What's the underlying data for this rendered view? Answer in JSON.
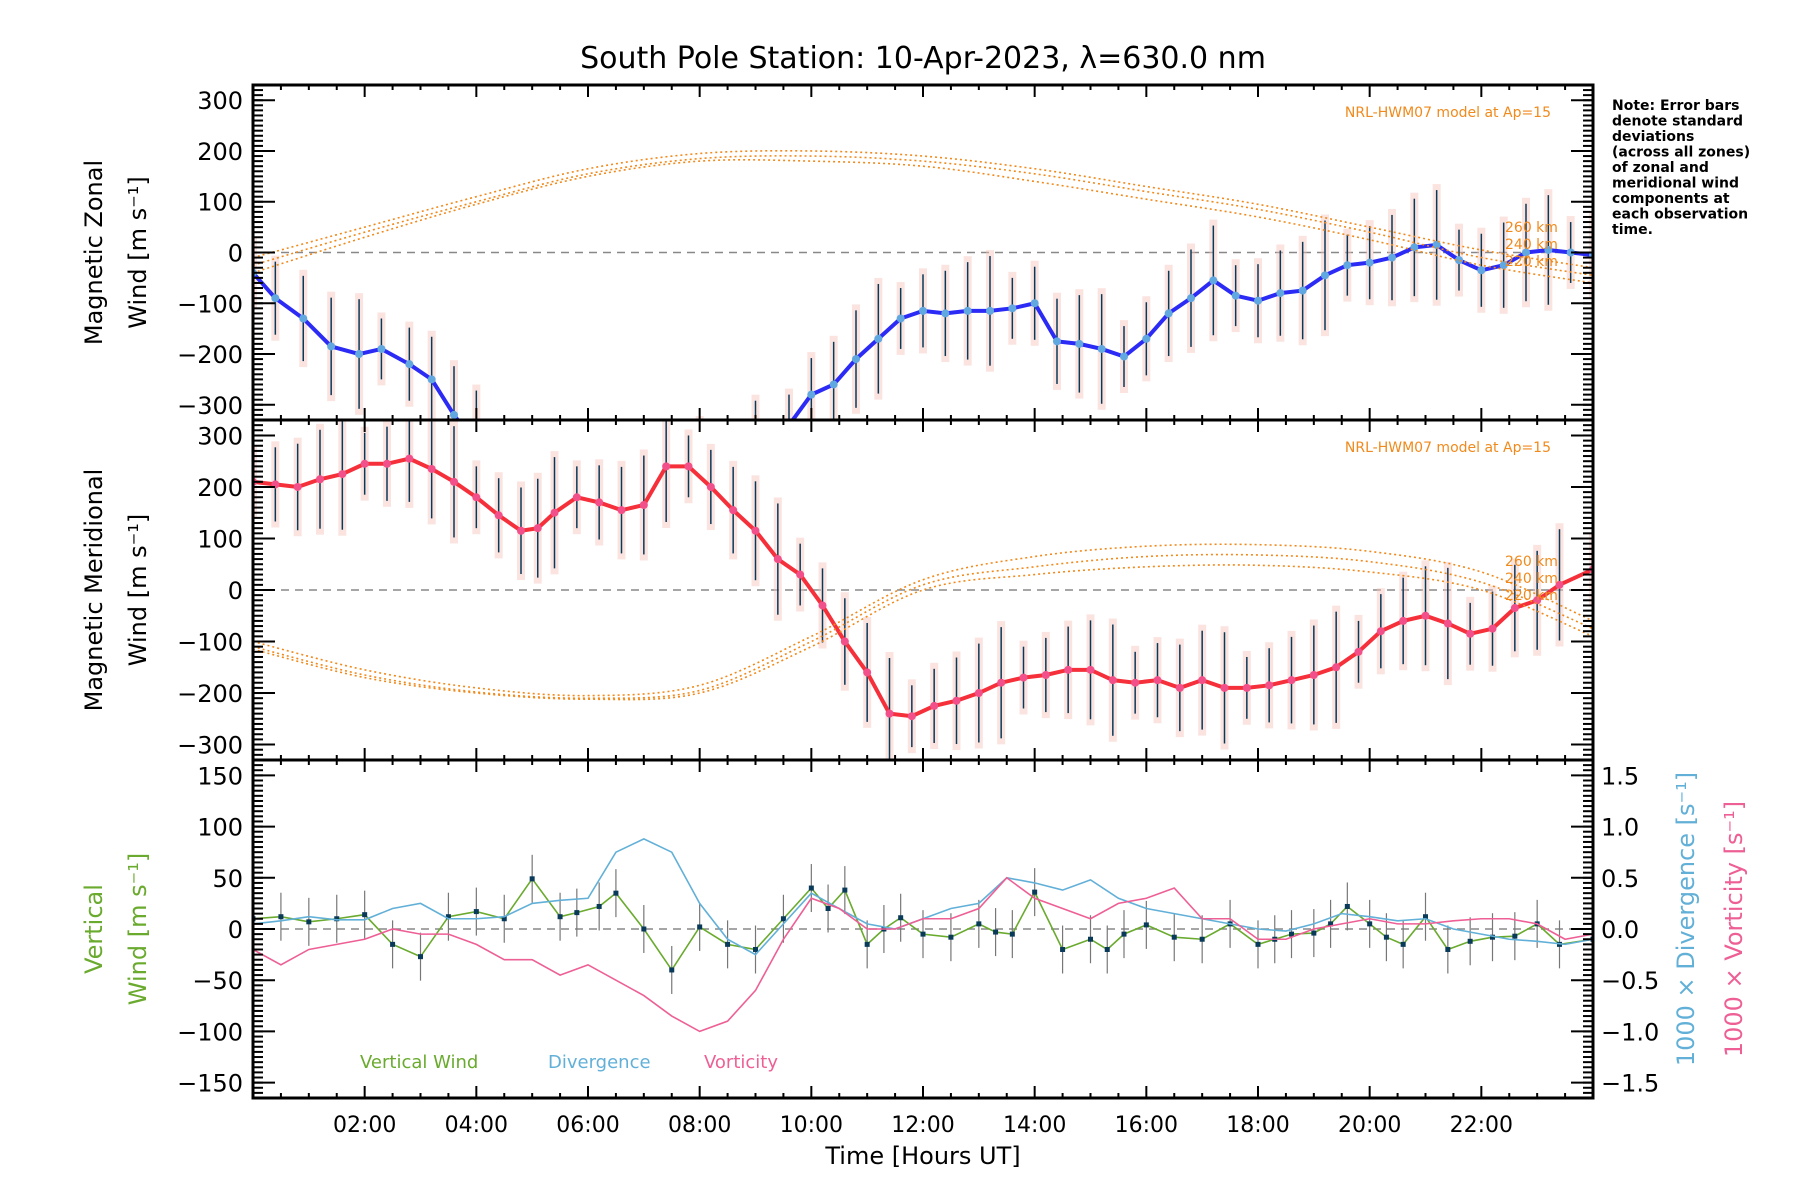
{
  "chart_data": [
    {
      "type": "line",
      "panel": "zonal",
      "title": "South Pole Station: 10-Apr-2023, λ=630.0 nm",
      "ylabel_line1": "Magnetic Zonal",
      "ylabel_line2": "Wind [m s⁻¹]",
      "ylim": [
        -330,
        330
      ],
      "yticks": [
        300,
        200,
        100,
        0,
        -100,
        -200,
        -300
      ],
      "model_label": "NRL-HWM07 model at Ap=15",
      "altitude_labels": [
        "260 km",
        "240 km",
        "220 km"
      ],
      "series": [
        {
          "name": "Zonal wind",
          "color": "#2b2bf5",
          "x": [
            0.0,
            0.4,
            0.9,
            1.4,
            1.9,
            2.3,
            2.8,
            3.2,
            3.6,
            4.0,
            5.0,
            6.0,
            7.0,
            8.0,
            9.0,
            9.6,
            10.0,
            10.4,
            10.8,
            11.2,
            11.6,
            12.0,
            12.4,
            12.8,
            13.2,
            13.6,
            14.0,
            14.4,
            14.8,
            15.2,
            15.6,
            16.0,
            16.4,
            16.8,
            17.2,
            17.6,
            18.0,
            18.4,
            18.8,
            19.2,
            19.6,
            20.0,
            20.4,
            20.8,
            21.2,
            21.6,
            22.0,
            22.4,
            22.8,
            23.2,
            23.6,
            24.0
          ],
          "y": [
            -40,
            -90,
            -130,
            -185,
            -200,
            -190,
            -220,
            -250,
            -320,
            -380,
            -420,
            -430,
            -440,
            -430,
            -400,
            -340,
            -280,
            -260,
            -210,
            -170,
            -130,
            -115,
            -120,
            -115,
            -115,
            -110,
            -100,
            -175,
            -180,
            -190,
            -205,
            -170,
            -120,
            -90,
            -55,
            -85,
            -95,
            -80,
            -75,
            -45,
            -25,
            -20,
            -10,
            10,
            15,
            -15,
            -35,
            -25,
            0,
            5,
            0,
            -5
          ]
        },
        {
          "name": "NRL-HWM07 260 km",
          "color": "#f08a1c",
          "x": [
            0,
            2,
            4,
            6,
            8,
            10,
            12,
            14,
            16,
            18,
            20,
            22,
            24
          ],
          "y": [
            -10,
            50,
            110,
            165,
            195,
            200,
            190,
            165,
            130,
            95,
            50,
            5,
            -30
          ]
        },
        {
          "name": "NRL-HWM07 240 km",
          "color": "#f08a1c",
          "x": [
            0,
            2,
            4,
            6,
            8,
            10,
            12,
            14,
            16,
            18,
            20,
            22,
            24
          ],
          "y": [
            -25,
            40,
            100,
            155,
            185,
            190,
            180,
            155,
            120,
            85,
            40,
            -10,
            -45
          ]
        },
        {
          "name": "NRL-HWM07 220 km",
          "color": "#f08a1c",
          "x": [
            0,
            2,
            4,
            6,
            8,
            10,
            12,
            14,
            16,
            18,
            20,
            22,
            24
          ],
          "y": [
            -40,
            30,
            95,
            150,
            180,
            180,
            170,
            140,
            105,
            70,
            25,
            -25,
            -60
          ]
        }
      ]
    },
    {
      "type": "line",
      "panel": "meridional",
      "ylabel_line1": "Magnetic Meridional",
      "ylabel_line2": "Wind [m s⁻¹]",
      "ylim": [
        -330,
        330
      ],
      "yticks": [
        300,
        200,
        100,
        0,
        -100,
        -200,
        -300
      ],
      "model_label": "NRL-HWM07 model at Ap=15",
      "altitude_labels": [
        "260 km",
        "240 km",
        "220 km"
      ],
      "series": [
        {
          "name": "Meridional wind",
          "color": "#f5303a",
          "x": [
            0.0,
            0.4,
            0.8,
            1.2,
            1.6,
            2.0,
            2.4,
            2.8,
            3.2,
            3.6,
            4.0,
            4.4,
            4.8,
            5.1,
            5.4,
            5.8,
            6.2,
            6.6,
            7.0,
            7.4,
            7.8,
            8.2,
            8.6,
            9.0,
            9.4,
            9.8,
            10.2,
            10.6,
            11.0,
            11.4,
            11.8,
            12.2,
            12.6,
            13.0,
            13.4,
            13.8,
            14.2,
            14.6,
            15.0,
            15.4,
            15.8,
            16.2,
            16.6,
            17.0,
            17.4,
            17.8,
            18.2,
            18.6,
            19.0,
            19.4,
            19.8,
            20.2,
            20.6,
            21.0,
            21.4,
            21.8,
            22.2,
            22.6,
            23.0,
            23.4,
            24.0
          ],
          "y": [
            210,
            205,
            200,
            215,
            225,
            245,
            245,
            255,
            235,
            210,
            180,
            145,
            115,
            120,
            150,
            180,
            170,
            155,
            165,
            240,
            240,
            200,
            155,
            115,
            60,
            30,
            -30,
            -100,
            -160,
            -240,
            -245,
            -225,
            -215,
            -200,
            -180,
            -170,
            -165,
            -155,
            -155,
            -175,
            -180,
            -175,
            -190,
            -175,
            -190,
            -190,
            -185,
            -175,
            -165,
            -150,
            -120,
            -80,
            -60,
            -50,
            -65,
            -85,
            -75,
            -35,
            -20,
            10,
            40
          ]
        },
        {
          "name": "NRL-HWM07 260 km",
          "color": "#f08a1c",
          "x": [
            0,
            2,
            4,
            6,
            8,
            10,
            12,
            14,
            16,
            18,
            20,
            22,
            24
          ],
          "y": [
            -100,
            -155,
            -190,
            -205,
            -185,
            -90,
            20,
            65,
            85,
            88,
            75,
            35,
            -60
          ]
        },
        {
          "name": "NRL-HWM07 240 km",
          "color": "#f08a1c",
          "x": [
            0,
            2,
            4,
            6,
            8,
            10,
            12,
            14,
            16,
            18,
            20,
            22,
            24
          ],
          "y": [
            -110,
            -165,
            -198,
            -210,
            -195,
            -100,
            10,
            45,
            65,
            68,
            55,
            15,
            -75
          ]
        },
        {
          "name": "NRL-HWM07 220 km",
          "color": "#f08a1c",
          "x": [
            0,
            2,
            4,
            6,
            8,
            10,
            12,
            14,
            16,
            18,
            20,
            22,
            24
          ],
          "y": [
            -115,
            -170,
            -200,
            -212,
            -200,
            -110,
            0,
            30,
            45,
            48,
            35,
            0,
            -90
          ]
        }
      ]
    },
    {
      "type": "line",
      "panel": "vertical",
      "ylabel_line1": "Vertical",
      "ylabel_line2": "Wind [m s⁻¹]",
      "ylim": [
        -165,
        165
      ],
      "yticks": [
        150,
        100,
        50,
        0,
        -50,
        -100,
        -150
      ],
      "y2label_div": "1000 × Divergence [s⁻¹]",
      "y2label_vort": "1000 × Vorticity [s⁻¹]",
      "y2lim": [
        -1.65,
        1.65
      ],
      "y2ticks": [
        "1.5",
        "1.0",
        "0.5",
        "0.0",
        "−0.5",
        "−1.0",
        "−1.5"
      ],
      "legend": [
        "Vertical Wind",
        "Divergence",
        "Vorticity"
      ],
      "series": [
        {
          "name": "Vertical Wind",
          "color": "#6aaa2e",
          "x": [
            0.0,
            0.5,
            1.0,
            1.5,
            2.0,
            2.5,
            3.0,
            3.5,
            4.0,
            4.5,
            5.0,
            5.5,
            5.8,
            6.2,
            6.5,
            7.0,
            7.5,
            8.0,
            8.5,
            9.0,
            9.5,
            10.0,
            10.3,
            10.6,
            11.0,
            11.3,
            11.6,
            12.0,
            12.5,
            13.0,
            13.3,
            13.6,
            14.0,
            14.5,
            15.0,
            15.3,
            15.6,
            16.0,
            16.5,
            17.0,
            17.5,
            18.0,
            18.3,
            18.6,
            19.0,
            19.3,
            19.6,
            20.0,
            20.3,
            20.6,
            21.0,
            21.4,
            21.8,
            22.2,
            22.6,
            23.0,
            23.4,
            24.0
          ],
          "y": [
            10,
            12,
            7,
            10,
            14,
            -15,
            -27,
            12,
            17,
            10,
            49,
            12,
            16,
            22,
            35,
            0,
            -40,
            2,
            -15,
            -20,
            10,
            40,
            20,
            38,
            -15,
            0,
            11,
            -5,
            -8,
            5,
            -3,
            -5,
            36,
            -20,
            -10,
            -20,
            -5,
            4,
            -8,
            -10,
            5,
            -15,
            -10,
            -5,
            -4,
            5,
            22,
            5,
            -8,
            -15,
            12,
            -20,
            -12,
            -8,
            -7,
            5,
            -15,
            -10
          ]
        },
        {
          "name": "Divergence",
          "color": "#62b0d8",
          "x": [
            0,
            0.5,
            1,
            1.5,
            2,
            2.5,
            3,
            3.5,
            4,
            4.5,
            5,
            5.5,
            6,
            6.5,
            7,
            7.5,
            8,
            8.5,
            9,
            9.5,
            10,
            10.5,
            11,
            11.5,
            12,
            12.5,
            13,
            13.5,
            14,
            14.5,
            15,
            15.5,
            16,
            16.5,
            17,
            17.5,
            18,
            18.5,
            19,
            19.5,
            20,
            20.5,
            21,
            21.5,
            22,
            22.5,
            23,
            23.5,
            24
          ],
          "y": [
            0.05,
            0.08,
            0.12,
            0.09,
            0.09,
            0.2,
            0.25,
            0.1,
            0.1,
            0.12,
            0.25,
            0.28,
            0.3,
            0.75,
            0.88,
            0.75,
            0.25,
            -0.1,
            -0.25,
            0.05,
            0.35,
            0.2,
            0.05,
            0.0,
            0.1,
            0.2,
            0.25,
            0.5,
            0.45,
            0.38,
            0.48,
            0.3,
            0.2,
            0.15,
            0.1,
            0.05,
            0.0,
            -0.02,
            0.05,
            0.15,
            0.12,
            0.08,
            0.1,
            0.0,
            -0.05,
            -0.1,
            -0.12,
            -0.15,
            -0.1
          ]
        },
        {
          "name": "Vorticity",
          "color": "#ee5f95",
          "x": [
            0,
            0.5,
            1,
            1.5,
            2,
            2.5,
            3,
            3.5,
            4,
            4.5,
            5,
            5.5,
            6,
            6.5,
            7,
            7.5,
            8,
            8.5,
            9,
            9.5,
            10,
            10.5,
            11,
            11.5,
            12,
            12.5,
            13,
            13.5,
            14,
            14.5,
            15,
            15.5,
            16,
            16.5,
            17,
            17.5,
            18,
            18.5,
            19,
            19.5,
            20,
            20.5,
            21,
            21.5,
            22,
            22.5,
            23,
            23.5,
            24
          ],
          "y": [
            -0.2,
            -0.35,
            -0.2,
            -0.15,
            -0.1,
            0.0,
            -0.05,
            -0.05,
            -0.15,
            -0.3,
            -0.3,
            -0.45,
            -0.35,
            -0.5,
            -0.65,
            -0.85,
            -1.0,
            -0.9,
            -0.6,
            -0.1,
            0.3,
            0.2,
            0.0,
            0.0,
            0.1,
            0.1,
            0.2,
            0.5,
            0.3,
            0.2,
            0.1,
            0.25,
            0.3,
            0.4,
            0.1,
            0.1,
            -0.1,
            -0.1,
            0.0,
            0.05,
            0.1,
            0.05,
            0.05,
            0.08,
            0.1,
            0.1,
            0.05,
            -0.1,
            -0.05
          ]
        }
      ]
    }
  ],
  "xaxis": {
    "label": "Time [Hours UT]",
    "xlim": [
      0,
      24
    ],
    "ticks": [
      "02:00",
      "04:00",
      "06:00",
      "08:00",
      "10:00",
      "12:00",
      "14:00",
      "16:00",
      "18:00",
      "20:00",
      "22:00"
    ]
  },
  "note": [
    "Note: Error bars",
    "denote standard",
    "deviations",
    "(across all zones)",
    "of zonal and",
    "meridional wind",
    "components at",
    "each observation",
    "time."
  ]
}
